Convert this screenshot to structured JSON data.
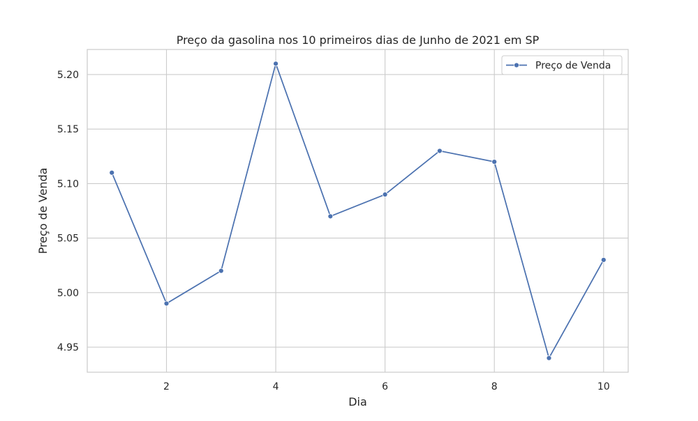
{
  "chart_data": {
    "type": "line",
    "title": "Preço da gasolina nos 10 primeiros dias de Junho de 2021 em SP",
    "xlabel": "Dia",
    "ylabel": "Preço de Venda",
    "x": [
      1,
      2,
      3,
      4,
      5,
      6,
      7,
      8,
      9,
      10
    ],
    "series": [
      {
        "name": "Preço de Venda",
        "values": [
          5.11,
          4.99,
          5.02,
          5.21,
          5.07,
          5.09,
          5.13,
          5.12,
          4.94,
          5.03
        ],
        "color": "#4c72b0",
        "marker": "circle"
      }
    ],
    "xlim": [
      0.55,
      10.45
    ],
    "ylim": [
      4.927,
      5.223
    ],
    "xticks": [
      2,
      4,
      6,
      8,
      10
    ],
    "xtick_labels": [
      "2",
      "4",
      "6",
      "8",
      "10"
    ],
    "yticks": [
      4.95,
      5.0,
      5.05,
      5.1,
      5.15,
      5.2
    ],
    "ytick_labels": [
      "4.95",
      "5.00",
      "5.05",
      "5.10",
      "5.15",
      "5.20"
    ],
    "grid": true,
    "legend_position": "top-right",
    "colors": {
      "background": "#ffffff",
      "grid": "#cccccc",
      "axes_edge": "#cccccc",
      "text": "#262626"
    }
  }
}
